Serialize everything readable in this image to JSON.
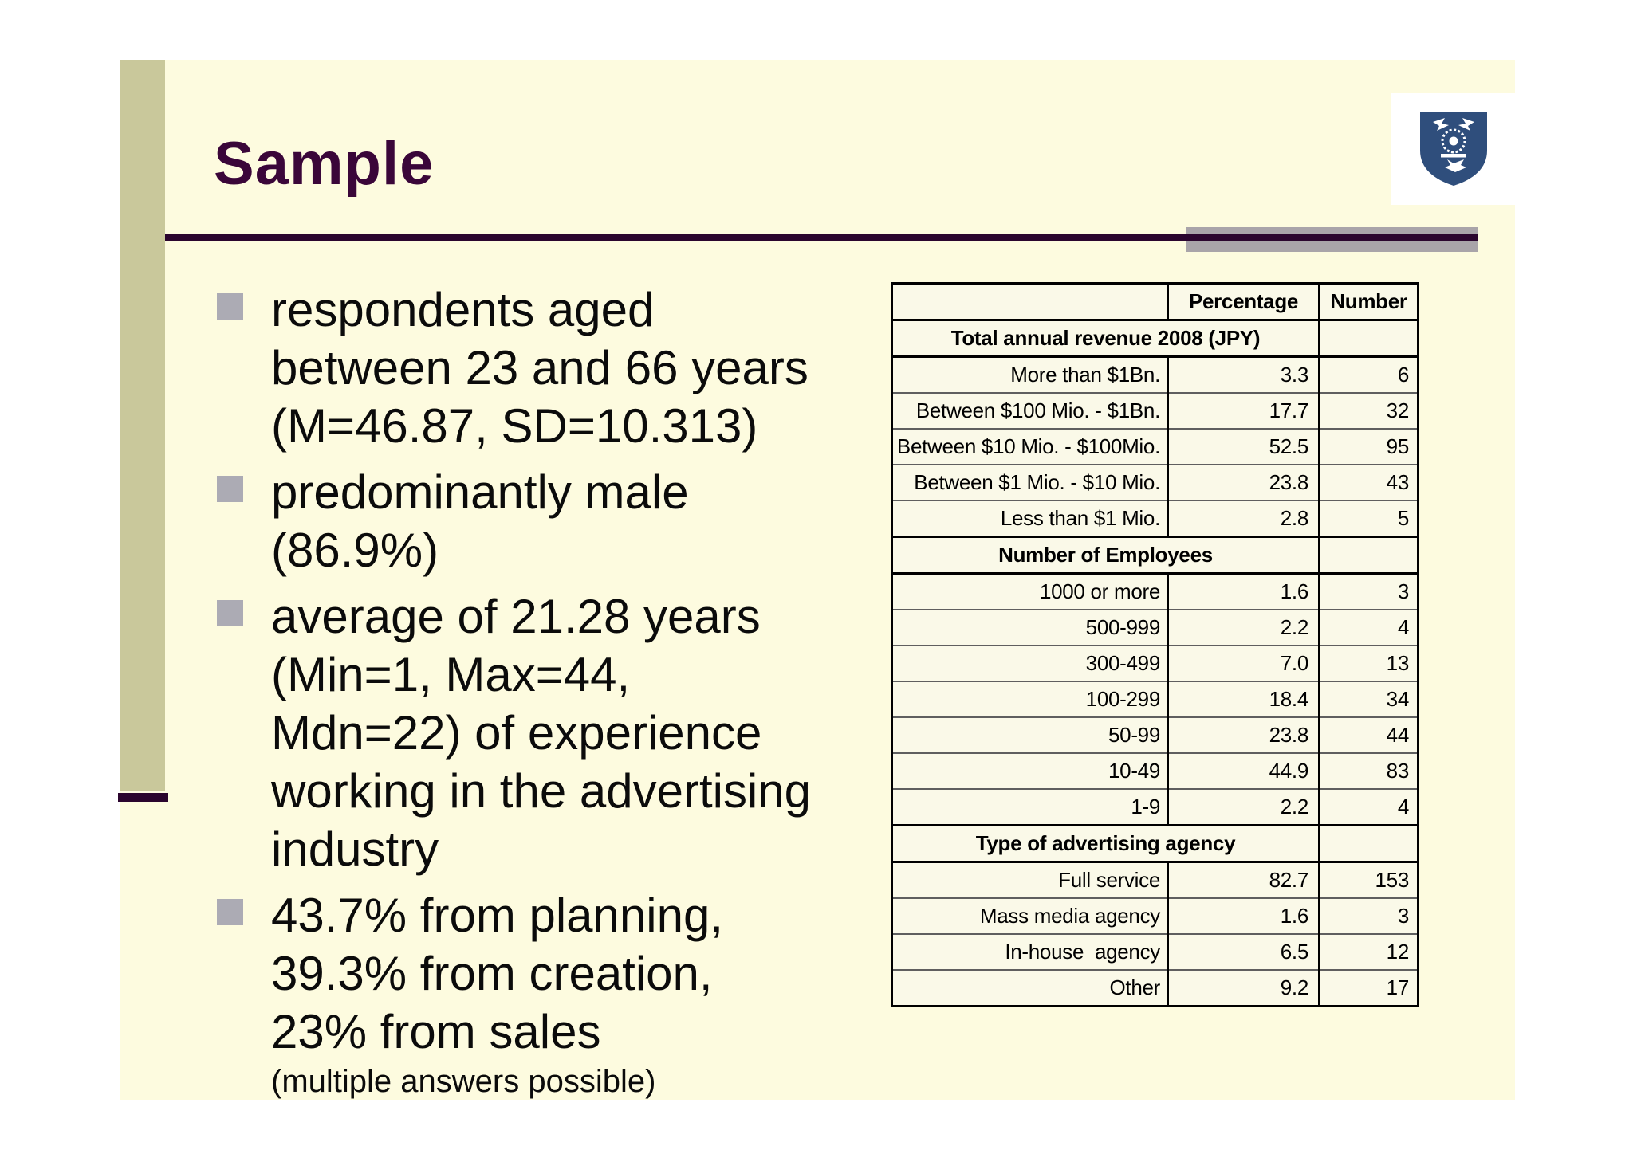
{
  "slide": {
    "title": "Sample",
    "bullets": [
      {
        "text": "respondents aged\nbetween 23 and 66 years\n(M=46.87, SD=10.313)"
      },
      {
        "text": "predominantly male\n(86.9%)"
      },
      {
        "text": "average of 21.28 years\n(Min=1, Max=44,\nMdn=22) of experience\nworking in the advertising\nindustry"
      },
      {
        "text": "43.7% from planning,\n39.3% from creation,\n23% from sales",
        "note": "(multiple answers possible)"
      }
    ],
    "logo": {
      "icon": "shield-crest",
      "color": "#2F4E7C"
    }
  },
  "table": {
    "headers": [
      "",
      "Percentage",
      "Number"
    ],
    "sections": [
      {
        "title": "Total annual revenue 2008 (JPY)",
        "rows": [
          {
            "label": "More than $1Bn.",
            "percentage": "3.3",
            "number": "6"
          },
          {
            "label": "Between $100 Mio. - $1Bn.",
            "percentage": "17.7",
            "number": "32"
          },
          {
            "label": "Between $10 Mio. - $100Mio.",
            "percentage": "52.5",
            "number": "95"
          },
          {
            "label": "Between $1 Mio. - $10 Mio.",
            "percentage": "23.8",
            "number": "43"
          },
          {
            "label": "Less than $1 Mio.",
            "percentage": "2.8",
            "number": "5"
          }
        ]
      },
      {
        "title": "Number of Employees",
        "rows": [
          {
            "label": "1000 or more",
            "percentage": "1.6",
            "number": "3"
          },
          {
            "label": "500-999",
            "percentage": "2.2",
            "number": "4"
          },
          {
            "label": "300-499",
            "percentage": "7.0",
            "number": "13"
          },
          {
            "label": "100-299",
            "percentage": "18.4",
            "number": "34"
          },
          {
            "label": "50-99",
            "percentage": "23.8",
            "number": "44"
          },
          {
            "label": "10-49",
            "percentage": "44.9",
            "number": "83"
          },
          {
            "label": "1-9",
            "percentage": "2.2",
            "number": "4"
          }
        ]
      },
      {
        "title": "Type of advertising agency",
        "rows": [
          {
            "label": "Full service",
            "percentage": "82.7",
            "number": "153"
          },
          {
            "label": "Mass media agency",
            "percentage": "1.6",
            "number": "3"
          },
          {
            "label": "In-house  agency",
            "percentage": "6.5",
            "number": "12"
          },
          {
            "label": "Other",
            "percentage": "9.2",
            "number": "17"
          }
        ]
      }
    ]
  },
  "colors": {
    "title_purple": "#3A0639",
    "rule_purple": "#2B052E",
    "olive_bar": "#C9C89B",
    "gray_accent": "#A9A4A9",
    "slide_bg": "#FDFBDF",
    "table_bg": "#FAF9E8",
    "bullet_gray": "#ACABB4",
    "logo_blue": "#2F4E7C"
  }
}
